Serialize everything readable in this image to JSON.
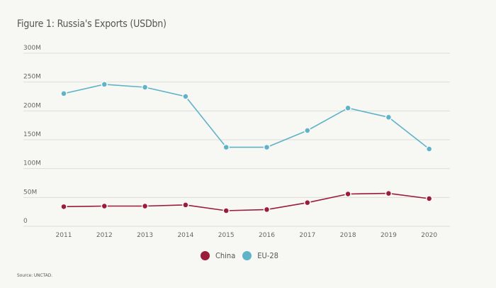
{
  "title": "Figure 1: Russia's Exports (USDbn)",
  "source": "Source: UNCTAD.",
  "chart_data": {
    "type": "line",
    "title": "Figure 1: Russia's Exports (USDbn)",
    "xlabel": "",
    "ylabel": "",
    "x": [
      "2011",
      "2012",
      "2013",
      "2014",
      "2015",
      "2016",
      "2017",
      "2018",
      "2019",
      "2020"
    ],
    "y_ticks": [
      "0",
      "50M",
      "100M",
      "150M",
      "200M",
      "250M",
      "300M"
    ],
    "y_tick_values": [
      0,
      50,
      100,
      150,
      200,
      250,
      300
    ],
    "ylim": [
      0,
      300
    ],
    "grid": true,
    "legend_position": "bottom-center",
    "series": [
      {
        "name": "China",
        "color": "#9b1b3b",
        "values": [
          34,
          35,
          35,
          37,
          27,
          29,
          41,
          56,
          57,
          48
        ]
      },
      {
        "name": "EU-28",
        "color": "#5fb3c9",
        "values": [
          230,
          246,
          241,
          225,
          137,
          137,
          166,
          205,
          189,
          134
        ]
      }
    ]
  }
}
